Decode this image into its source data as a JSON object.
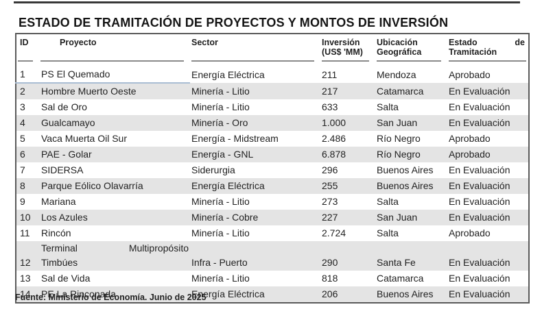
{
  "title": "ESTADO DE TRAMITACIÓN DE PROYECTOS Y MONTOS DE INVERSIÓN",
  "colors": {
    "text": "#222222",
    "stripe": "#e4e4e4",
    "border": "#5a5a5a",
    "header_rule": "#8a8a8a",
    "row1_rule": "#a9bdd3",
    "top_rule": "#383838"
  },
  "table": {
    "headers": {
      "id": "ID",
      "proyecto": "Proyecto",
      "sector": "Sector",
      "inversion_line1": "Inversión",
      "inversion_line2": "(US$ 'MM)",
      "ubicacion_line1": "Ubicación",
      "ubicacion_line2": "Geográfica",
      "estado_line1_left": "Estado",
      "estado_line1_right": "de",
      "estado_line2": "Tramitación"
    },
    "rows": [
      {
        "id": "1",
        "proyecto": "PS El Quemado",
        "sector": "Energía Eléctrica",
        "inversion": "211",
        "ubicacion": "Mendoza",
        "estado": "Aprobado"
      },
      {
        "id": "2",
        "proyecto": "Hombre Muerto Oeste",
        "sector": "Minería - Litio",
        "inversion": "217",
        "ubicacion": "Catamarca",
        "estado": "En Evaluación"
      },
      {
        "id": "3",
        "proyecto": "Sal de Oro",
        "sector": "Minería - Litio",
        "inversion": "633",
        "ubicacion": "Salta",
        "estado": "En Evaluación"
      },
      {
        "id": "4",
        "proyecto": "Gualcamayo",
        "sector": "Minería - Oro",
        "inversion": "1.000",
        "ubicacion": "San Juan",
        "estado": "En Evaluación"
      },
      {
        "id": "5",
        "proyecto": "Vaca Muerta Oil Sur",
        "sector": "Energía - Midstream",
        "inversion": "2.486",
        "ubicacion": "Río Negro",
        "estado": "Aprobado"
      },
      {
        "id": "6",
        "proyecto": "PAE - Golar",
        "sector": "Energía - GNL",
        "inversion": "6.878",
        "ubicacion": "Río Negro",
        "estado": "Aprobado"
      },
      {
        "id": "7",
        "proyecto": "SIDERSA",
        "sector": "Siderurgia",
        "inversion": "296",
        "ubicacion": "Buenos Aires",
        "estado": "En Evaluación"
      },
      {
        "id": "8",
        "proyecto": "Parque Eólico Olavarría",
        "sector": "Energía Eléctrica",
        "inversion": "255",
        "ubicacion": "Buenos Aires",
        "estado": "En Evaluación"
      },
      {
        "id": "9",
        "proyecto": "Mariana",
        "sector": "Minería - Litio",
        "inversion": "273",
        "ubicacion": "Salta",
        "estado": "En Evaluación"
      },
      {
        "id": "10",
        "proyecto": "Los Azules",
        "sector": "Minería - Cobre",
        "inversion": "227",
        "ubicacion": "San Juan",
        "estado": "En Evaluación"
      },
      {
        "id": "11",
        "proyecto": "Rincón",
        "sector": "Minería - Litio",
        "inversion": "2.724",
        "ubicacion": "Salta",
        "estado": "Aprobado"
      },
      {
        "id": "12",
        "proyecto": "Terminal Multipropósito Timbúes",
        "proyecto_wrap": {
          "line1_left": "Terminal",
          "line1_right": "Multipropósito",
          "line2": "Timbúes"
        },
        "sector": "Infra - Puerto",
        "inversion": "290",
        "ubicacion": "Santa Fe",
        "estado": "En Evaluación"
      },
      {
        "id": "13",
        "proyecto": "Sal de Vida",
        "sector": "Minería - Litio",
        "inversion": "818",
        "ubicacion": "Catamarca",
        "estado": "En Evaluación"
      },
      {
        "id": "14",
        "proyecto": "PE La Rinconada",
        "sector": "Energía Eléctrica",
        "inversion": "206",
        "ubicacion": "Buenos Aires",
        "estado": "En Evaluación"
      }
    ]
  },
  "footer": {
    "source": "Fuente: Ministerio de Economía. Junio de 2025"
  }
}
